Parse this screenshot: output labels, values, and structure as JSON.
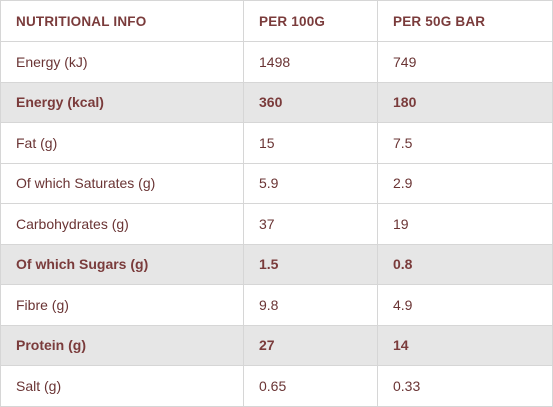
{
  "table": {
    "headers": [
      "NUTRITIONAL INFO",
      "PER 100G",
      "PER 50G BAR"
    ],
    "rows": [
      {
        "label": "Energy (kJ)",
        "per_100g": "1498",
        "per_bar": "749",
        "highlight": false
      },
      {
        "label": "Energy (kcal)",
        "per_100g": "360",
        "per_bar": "180",
        "highlight": true
      },
      {
        "label": "Fat (g)",
        "per_100g": "15",
        "per_bar": "7.5",
        "highlight": false
      },
      {
        "label": "Of which Saturates (g)",
        "per_100g": "5.9",
        "per_bar": "2.9",
        "highlight": false
      },
      {
        "label": "Carbohydrates (g)",
        "per_100g": "37",
        "per_bar": "19",
        "highlight": false
      },
      {
        "label": "Of which Sugars (g)",
        "per_100g": "1.5",
        "per_bar": "0.8",
        "highlight": true
      },
      {
        "label": "Fibre (g)",
        "per_100g": "9.8",
        "per_bar": "4.9",
        "highlight": false
      },
      {
        "label": "Protein (g)",
        "per_100g": "27",
        "per_bar": "14",
        "highlight": true
      },
      {
        "label": "Salt (g)",
        "per_100g": "0.65",
        "per_bar": "0.33",
        "highlight": false
      }
    ]
  },
  "colors": {
    "text": "#6a3434",
    "header_text": "#7a3b3b",
    "highlight_row": "#e6e6e6",
    "border": "#d6d6d6"
  }
}
